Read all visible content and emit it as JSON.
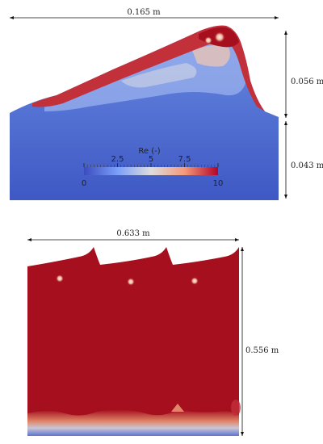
{
  "top_panel": {
    "width_label": "0.165 m",
    "upper_height_label": "0.056 m",
    "lower_height_label": "0.043 m"
  },
  "colorbar": {
    "title": "Re (-)",
    "min": 0,
    "max": 10,
    "ticks": [
      0,
      2.5,
      5,
      7.5,
      10
    ],
    "tick_labels": [
      "0",
      "2.5",
      "5",
      "7.5",
      "10"
    ],
    "low_color": "#3b4cc0",
    "mid_color": "#dddddd",
    "high_color": "#b40426"
  },
  "bottom_panel": {
    "width_label": "0.633 m",
    "height_label": "0.556 m",
    "fill_color": "#a50f1e"
  }
}
